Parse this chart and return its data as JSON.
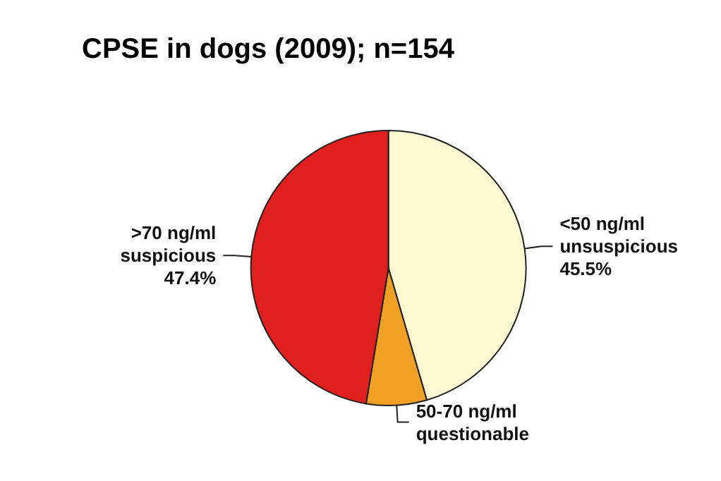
{
  "chart_data": {
    "type": "pie",
    "title": "CPSE in dogs (2009); n=154",
    "categories": [
      "<50 ng/ml\nunsuspicious",
      "50-70 ng/ml\nquestionable",
      ">70 ng/ml\nsuspicious"
    ],
    "values": [
      45.5,
      7.1,
      47.4
    ],
    "value_labels": [
      "45.5%",
      null,
      "47.4%"
    ],
    "colors": [
      "#fdf8d2",
      "#f0a024",
      "#e21f1f"
    ],
    "legend": false
  }
}
